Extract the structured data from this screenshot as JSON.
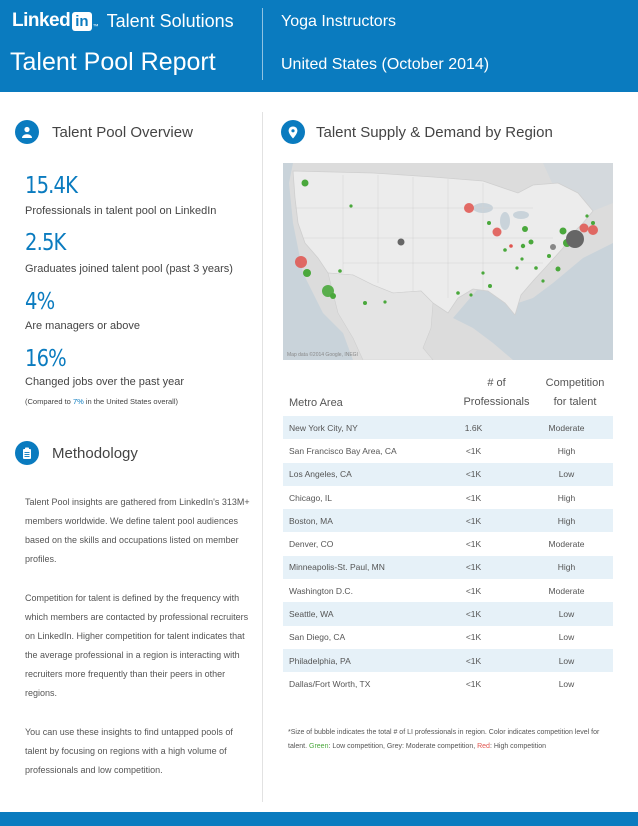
{
  "header": {
    "logo_text": "Linked",
    "logo_in": "in",
    "logo_tm": "™",
    "brand_sub": "Talent Solutions",
    "report_title": "Talent Pool Report",
    "role": "Yoga Instructors",
    "region": "United States (October 2014)"
  },
  "colors": {
    "brand": "#0a7bbf",
    "high": "#e0544e",
    "low": "#4aa83c",
    "moderate": "#777777"
  },
  "overview": {
    "title": "Talent Pool Overview",
    "icon": "person-icon",
    "stats": [
      {
        "value": "15.4K",
        "label": "Professionals in talent pool on LinkedIn"
      },
      {
        "value": "2.5K",
        "label": "Graduates joined talent pool (past 3 years)"
      },
      {
        "value": "4%",
        "label": "Are managers or above"
      },
      {
        "value": "16%",
        "label": "Changed jobs over the past year"
      }
    ],
    "note_prefix": "(Compared to ",
    "note_value": "7%",
    "note_suffix": " in the United States overall)"
  },
  "methodology": {
    "title": "Methodology",
    "icon": "clipboard-icon",
    "paragraphs": [
      "Talent Pool insights are gathered from LinkedIn's 313M+ members worldwide. We define talent pool audiences based on the skills and occupations listed on member profiles.",
      "Competition for talent is defined by the frequency with which members are contacted by professional recruiters on LinkedIn. Higher competition for talent indicates that the average professional in a region is interacting with recruiters more frequently than their peers in other regions.",
      "You can use these insights to find untapped pools of talent by focusing on regions with a high volume of professionals and low competition."
    ]
  },
  "supply": {
    "title": "Talent Supply & Demand by Region",
    "icon": "location-pin-icon",
    "map_credit": "Map data ©2014 Google, INEGI"
  },
  "table": {
    "col_metro": "Metro Area",
    "col_prof_1": "# of",
    "col_prof_2": "Professionals",
    "col_comp_1": "Competition",
    "col_comp_2": "for talent",
    "rows": [
      {
        "metro": "New York City, NY",
        "professionals": "1.6K",
        "competition": "Moderate"
      },
      {
        "metro": "San Francisco Bay Area, CA",
        "professionals": "<1K",
        "competition": "High"
      },
      {
        "metro": "Los Angeles, CA",
        "professionals": "<1K",
        "competition": "Low"
      },
      {
        "metro": "Chicago, IL",
        "professionals": "<1K",
        "competition": "High"
      },
      {
        "metro": "Boston, MA",
        "professionals": "<1K",
        "competition": "High"
      },
      {
        "metro": "Denver, CO",
        "professionals": "<1K",
        "competition": "Moderate"
      },
      {
        "metro": "Minneapolis-St. Paul, MN",
        "professionals": "<1K",
        "competition": "High"
      },
      {
        "metro": "Washington D.C.",
        "professionals": "<1K",
        "competition": "Moderate"
      },
      {
        "metro": "Seattle, WA",
        "professionals": "<1K",
        "competition": "Low"
      },
      {
        "metro": "San Diego, CA",
        "professionals": "<1K",
        "competition": "Low"
      },
      {
        "metro": "Philadelphia, PA",
        "professionals": "<1K",
        "competition": "Low"
      },
      {
        "metro": "Dallas/Fort Worth, TX",
        "professionals": "<1K",
        "competition": "Low"
      }
    ]
  },
  "footnote": {
    "part1": "*Size of bubble indicates the total # of LI professionals in region. Color indicates competition level for talent. ",
    "green": "Green",
    "part2": ": Low competition, Grey: Moderate competition, ",
    "red": "Red",
    "part3": ": High competition"
  }
}
